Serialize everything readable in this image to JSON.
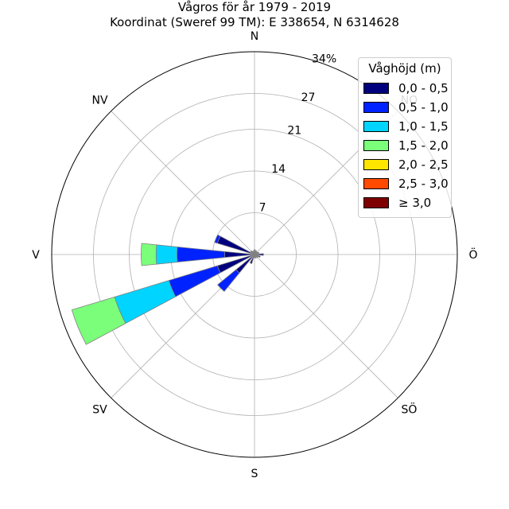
{
  "title_line1": "Vågros för år 1979 - 2019",
  "title_line2": "Koordinat (Sweref 99 TM): E 338654, N 6314628",
  "chart_data": {
    "type": "windrose",
    "directions": [
      "N",
      "NO",
      "Ö",
      "SÖ",
      "S",
      "SV",
      "V",
      "NV"
    ],
    "radial_ticks": [
      7,
      14,
      21,
      27,
      34
    ],
    "radial_tick_labels": [
      "7",
      "14",
      "21",
      "27",
      "34%"
    ],
    "rmax": 34,
    "grid": true,
    "legend": {
      "title": "Våghöjd (m)",
      "placement": "top-right",
      "entries": [
        {
          "label": "0,0 - 0,5",
          "color": "#00007f"
        },
        {
          "label": "0,5 - 1,0",
          "color": "#0022ff"
        },
        {
          "label": "1,0 - 1,5",
          "color": "#00d4ff"
        },
        {
          "label": "1,5 - 2,0",
          "color": "#7bff7b"
        },
        {
          "label": "2,0 - 2,5",
          "color": "#ffe600"
        },
        {
          "label": "2,5 - 3,0",
          "color": "#ff4a00"
        },
        {
          "label": "≥ 3,0",
          "color": "#7f0000"
        }
      ]
    },
    "sector_width_deg": 11.25,
    "sectors": [
      {
        "dir_deg": 0,
        "values": [
          0.8
        ]
      },
      {
        "dir_deg": 22.5,
        "values": [
          0.7
        ]
      },
      {
        "dir_deg": 45,
        "values": [
          0.6
        ]
      },
      {
        "dir_deg": 67.5,
        "values": [
          0.8
        ]
      },
      {
        "dir_deg": 90,
        "values": [
          1.5
        ]
      },
      {
        "dir_deg": 112.5,
        "values": [
          1.0
        ]
      },
      {
        "dir_deg": 135,
        "values": [
          0.7
        ]
      },
      {
        "dir_deg": 157.5,
        "values": [
          0.6
        ]
      },
      {
        "dir_deg": 180,
        "values": [
          0.6
        ]
      },
      {
        "dir_deg": 202.5,
        "values": [
          1.6
        ]
      },
      {
        "dir_deg": 225,
        "values": [
          4.0,
          4.0
        ]
      },
      {
        "dir_deg": 247.5,
        "values": [
          6.5,
          8.5,
          9.5,
          7.5
        ]
      },
      {
        "dir_deg": 270,
        "values": [
          5.0,
          8.0,
          3.5,
          2.5
        ]
      },
      {
        "dir_deg": 292.5,
        "values": [
          6.5,
          0.5
        ]
      },
      {
        "dir_deg": 315,
        "values": [
          0.8
        ]
      },
      {
        "dir_deg": 337.5,
        "values": [
          0.6
        ]
      }
    ]
  }
}
